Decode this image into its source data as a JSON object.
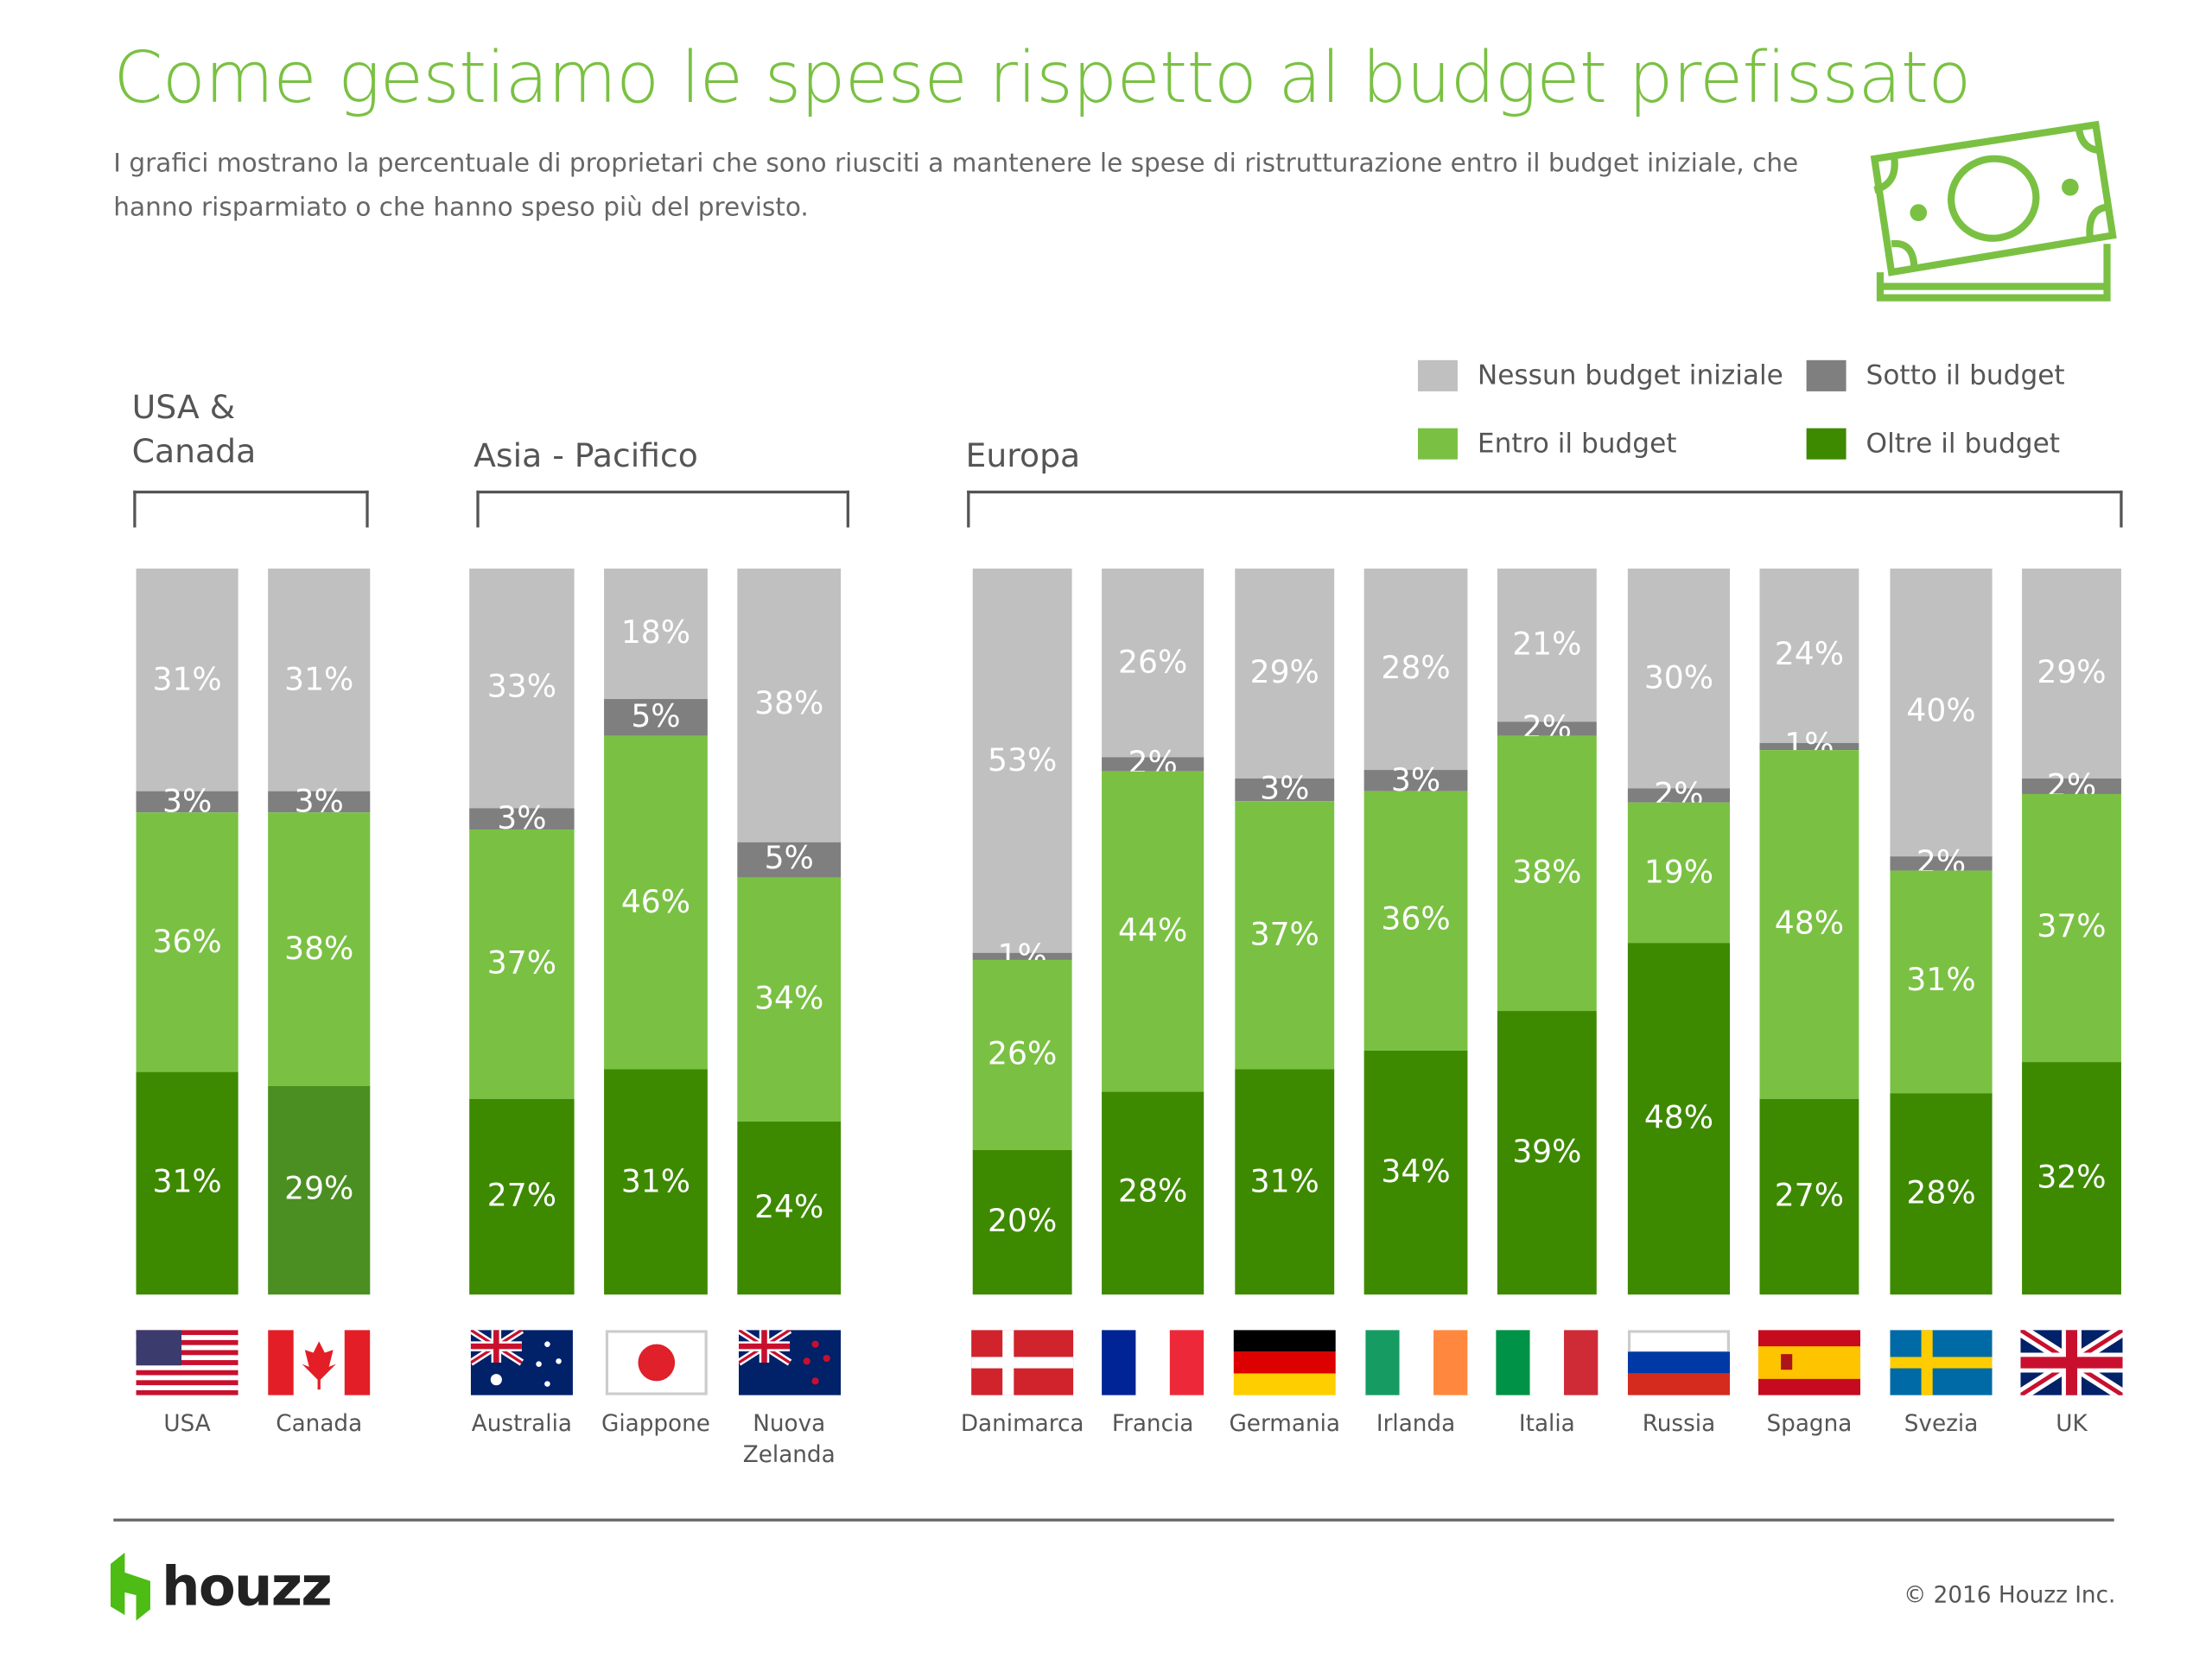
{
  "title": "Come gestiamo le spese rispetto al budget prefissato",
  "subtitle": "I grafici mostrano la percentuale di proprietari che sono riusciti a mantenere le spese di ristrutturazione entro il budget iniziale, che hanno risparmiato o che hanno speso più del previsto.",
  "footer": {
    "logo": "houzz",
    "copyright": "© 2016 Houzz Inc."
  },
  "colors": {
    "none": "#c0c0c0",
    "under": "#7f7f7f",
    "within": "#7ac143",
    "over": "#3d8a00",
    "over_canada": "#4b8f22",
    "accent": "#7ac143"
  },
  "chart_data": {
    "type": "bar",
    "stacked": true,
    "legend_placement": "top-right",
    "series": [
      {
        "name": "Nessun budget iniziale",
        "key": "none"
      },
      {
        "name": "Sotto il budget",
        "key": "under"
      },
      {
        "name": "Entro il budget",
        "key": "within"
      },
      {
        "name": "Oltre il budget",
        "key": "over"
      }
    ],
    "groups": [
      {
        "region": "USA & Canada",
        "countries": [
          {
            "name": "USA",
            "flag": "us-flag",
            "values": [
              31,
              3,
              36,
              31
            ]
          },
          {
            "name": "Canada",
            "flag": "canada-flag",
            "values": [
              31,
              3,
              38,
              29
            ]
          }
        ]
      },
      {
        "region": "Asia - Pacifico",
        "countries": [
          {
            "name": "Australia",
            "flag": "australia-flag",
            "values": [
              33,
              3,
              37,
              27
            ]
          },
          {
            "name": "Giappone",
            "flag": "japan-flag",
            "values": [
              18,
              5,
              46,
              31
            ]
          },
          {
            "name": "Nuova Zelanda",
            "flag": "new-zealand-flag",
            "values": [
              38,
              5,
              34,
              24
            ]
          }
        ]
      },
      {
        "region": "Europa",
        "countries": [
          {
            "name": "Danimarca",
            "flag": "denmark-flag",
            "values": [
              53,
              1,
              26,
              20
            ]
          },
          {
            "name": "Francia",
            "flag": "france-flag",
            "values": [
              26,
              2,
              44,
              28
            ]
          },
          {
            "name": "Germania",
            "flag": "germany-flag",
            "values": [
              29,
              3,
              37,
              31
            ]
          },
          {
            "name": "Irlanda",
            "flag": "ireland-flag",
            "values": [
              28,
              3,
              36,
              34
            ]
          },
          {
            "name": "Italia",
            "flag": "italy-flag",
            "values": [
              21,
              2,
              38,
              39
            ]
          },
          {
            "name": "Russia",
            "flag": "russia-flag",
            "values": [
              30,
              2,
              19,
              48
            ]
          },
          {
            "name": "Spagna",
            "flag": "spain-flag",
            "values": [
              24,
              1,
              48,
              27
            ]
          },
          {
            "name": "Svezia",
            "flag": "sweden-flag",
            "values": [
              40,
              2,
              31,
              28
            ]
          },
          {
            "name": "UK",
            "flag": "uk-flag",
            "values": [
              29,
              2,
              37,
              32
            ]
          }
        ]
      }
    ]
  }
}
